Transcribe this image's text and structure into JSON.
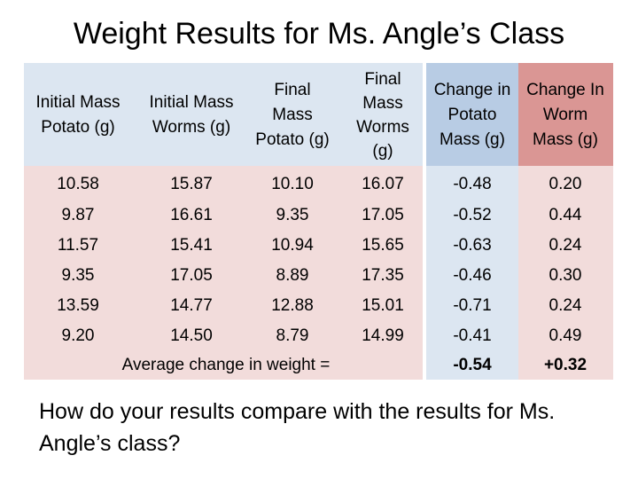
{
  "title": "Weight Results for Ms. Angle’s Class",
  "table": {
    "headers": [
      "Initial Mass\nPotato (g)",
      "Initial Mass\nWorms (g)",
      "Final\nMass\nPotato (g)",
      "Final\nMass\nWorms\n(g)",
      "Change in\nPotato\nMass (g)",
      "Change In\nWorm\nMass (g)"
    ],
    "rows": [
      [
        "10.58",
        "15.87",
        "10.10",
        "16.07",
        "-0.48",
        "0.20"
      ],
      [
        "9.87",
        "16.61",
        "9.35",
        "17.05",
        "-0.52",
        "0.44"
      ],
      [
        "11.57",
        "15.41",
        "10.94",
        "15.65",
        "-0.63",
        "0.24"
      ],
      [
        "9.35",
        "17.05",
        "8.89",
        "17.35",
        "-0.46",
        "0.30"
      ],
      [
        "13.59",
        "14.77",
        "12.88",
        "15.01",
        "-0.71",
        "0.24"
      ],
      [
        "9.20",
        "14.50",
        "8.79",
        "14.99",
        "-0.41",
        "0.49"
      ]
    ],
    "average_label": "Average change in weight =",
    "average_potato": "-0.54",
    "average_worm": "+0.32"
  },
  "question": "How do your results compare with the results for Ms. Angle’s class?",
  "colors": {
    "light_blue": "#dce6f1",
    "light_pink": "#f2dcdb",
    "medium_blue": "#b8cce4",
    "dusty_rose": "#da9694"
  }
}
